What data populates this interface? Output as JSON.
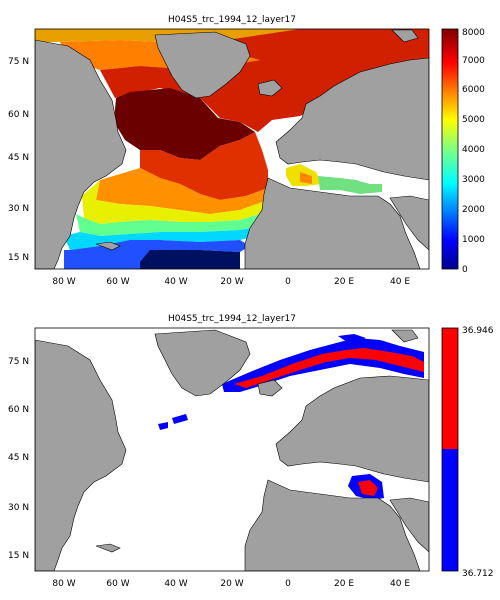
{
  "panels": [
    {
      "title": "H04S5_trc_1994_12_layer17",
      "y_ticks": [
        "75 N",
        "60 N",
        "45 N",
        "30 N",
        "15 N"
      ],
      "x_ticks": [
        "80 W",
        "60 W",
        "40 W",
        "20 W",
        "0",
        "20 E",
        "40 E"
      ],
      "colorbar": {
        "type": "continuous",
        "ticks": [
          "8000",
          "7000",
          "6000",
          "5000",
          "4000",
          "3000",
          "2000",
          "1000",
          "0"
        ],
        "range": [
          0,
          8000
        ],
        "colormap": "jet"
      }
    },
    {
      "title": "H04S5_trc_1994_12_layer17",
      "y_ticks": [
        "75 N",
        "60 N",
        "45 N",
        "30 N",
        "15 N"
      ],
      "x_ticks": [
        "80 W",
        "60 W",
        "40 W",
        "20 W",
        "0",
        "20 E",
        "40 E"
      ],
      "colorbar": {
        "type": "binary",
        "top_label": "36.946",
        "bottom_label": "36.712",
        "colors": [
          "#ff0000",
          "#0000ff"
        ]
      }
    }
  ],
  "colors": {
    "land": "#a0a0a0",
    "ocean_nodata": "#ffffff",
    "above_threshold": "#ff0000",
    "below_threshold": "#0000ff"
  }
}
